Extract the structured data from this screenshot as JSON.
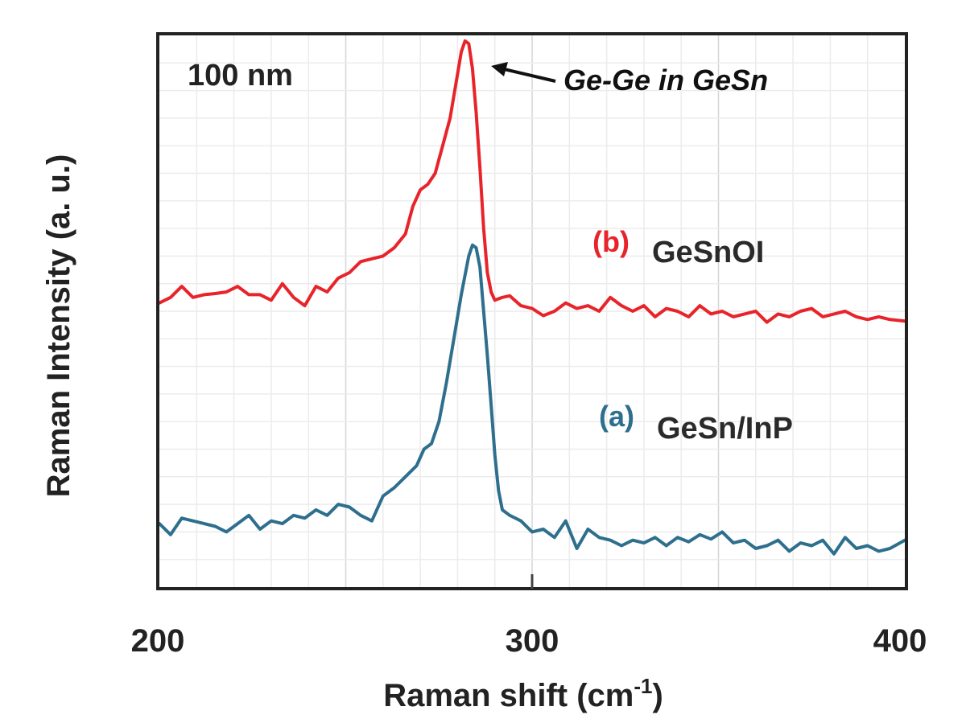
{
  "chart_data": {
    "type": "line",
    "xlabel": "Raman shift (cm",
    "xlabel_sup": "-1",
    "xlabel_close": ")",
    "ylabel": "Raman Intensity (a. u.)",
    "xlim": [
      200,
      400
    ],
    "ylim": [
      0,
      1
    ],
    "x_ticks": [
      "200",
      "300",
      "400"
    ],
    "grid": true,
    "y_ticks_labeled": false,
    "panel_label": "100 nm",
    "annotation": {
      "text": "Ge-Ge in GeSn",
      "points_to": [
        283,
        0.99
      ]
    },
    "series": [
      {
        "name": "GeSnOI",
        "tag": "(b)",
        "color": "#e8242b",
        "x": [
          200,
          203,
          206,
          209,
          212,
          215,
          218,
          221,
          224,
          227,
          230,
          233,
          236,
          239,
          242,
          245,
          248,
          251,
          254,
          257,
          260,
          263,
          266,
          268,
          270,
          272,
          274,
          276,
          278,
          280,
          281,
          282,
          283,
          284,
          285,
          286,
          287,
          288,
          289,
          290,
          292,
          294,
          297,
          300,
          303,
          306,
          309,
          312,
          315,
          318,
          321,
          324,
          327,
          330,
          333,
          336,
          339,
          342,
          345,
          348,
          351,
          354,
          357,
          360,
          363,
          366,
          369,
          372,
          375,
          378,
          381,
          384,
          387,
          390,
          393,
          396,
          400
        ],
        "values": [
          0.515,
          0.525,
          0.545,
          0.525,
          0.53,
          0.532,
          0.535,
          0.545,
          0.53,
          0.53,
          0.52,
          0.55,
          0.525,
          0.51,
          0.545,
          0.535,
          0.56,
          0.57,
          0.59,
          0.595,
          0.6,
          0.615,
          0.64,
          0.69,
          0.72,
          0.73,
          0.75,
          0.8,
          0.85,
          0.93,
          0.97,
          0.99,
          0.985,
          0.94,
          0.86,
          0.76,
          0.65,
          0.57,
          0.535,
          0.52,
          0.525,
          0.528,
          0.51,
          0.505,
          0.492,
          0.5,
          0.515,
          0.505,
          0.51,
          0.5,
          0.525,
          0.51,
          0.5,
          0.51,
          0.49,
          0.505,
          0.5,
          0.49,
          0.51,
          0.495,
          0.5,
          0.49,
          0.495,
          0.5,
          0.48,
          0.495,
          0.49,
          0.5,
          0.505,
          0.49,
          0.495,
          0.5,
          0.49,
          0.485,
          0.49,
          0.485,
          0.482
        ]
      },
      {
        "name": "GeSn/InP",
        "tag": "(a)",
        "color": "#2e6f8e",
        "x": [
          200,
          203,
          206,
          209,
          212,
          215,
          218,
          221,
          224,
          227,
          230,
          233,
          236,
          239,
          242,
          245,
          248,
          251,
          254,
          257,
          260,
          263,
          266,
          269,
          271,
          273,
          275,
          277,
          279,
          281,
          283,
          284,
          285,
          286,
          287,
          288,
          289,
          290,
          291,
          292,
          294,
          297,
          300,
          303,
          306,
          309,
          312,
          315,
          318,
          321,
          324,
          327,
          330,
          333,
          336,
          339,
          342,
          345,
          348,
          351,
          354,
          357,
          360,
          363,
          366,
          369,
          372,
          375,
          378,
          381,
          384,
          387,
          390,
          393,
          396,
          400
        ],
        "values": [
          0.115,
          0.095,
          0.125,
          0.12,
          0.115,
          0.11,
          0.1,
          0.115,
          0.13,
          0.105,
          0.12,
          0.115,
          0.13,
          0.125,
          0.14,
          0.13,
          0.15,
          0.145,
          0.13,
          0.12,
          0.165,
          0.18,
          0.2,
          0.22,
          0.25,
          0.26,
          0.3,
          0.37,
          0.45,
          0.53,
          0.6,
          0.62,
          0.615,
          0.58,
          0.5,
          0.42,
          0.33,
          0.24,
          0.175,
          0.14,
          0.13,
          0.12,
          0.1,
          0.105,
          0.09,
          0.12,
          0.07,
          0.105,
          0.09,
          0.085,
          0.075,
          0.085,
          0.08,
          0.09,
          0.075,
          0.09,
          0.082,
          0.095,
          0.087,
          0.1,
          0.08,
          0.085,
          0.07,
          0.075,
          0.085,
          0.065,
          0.08,
          0.075,
          0.085,
          0.06,
          0.09,
          0.07,
          0.075,
          0.065,
          0.07,
          0.085
        ]
      }
    ]
  }
}
